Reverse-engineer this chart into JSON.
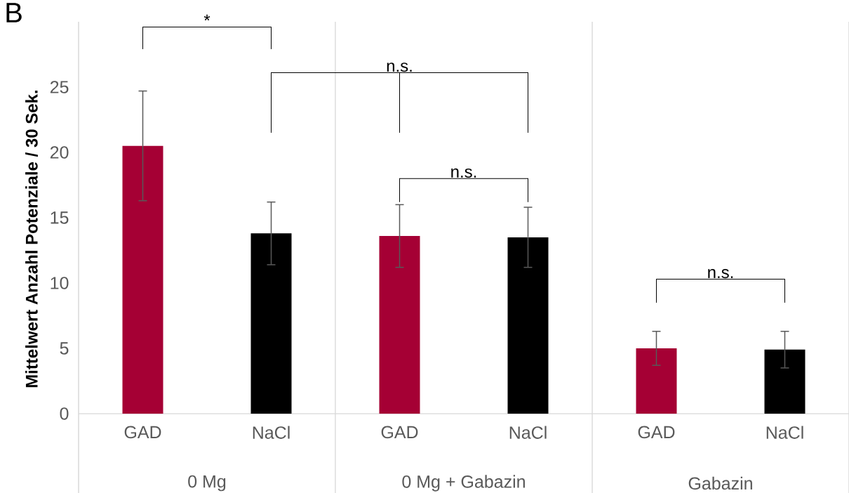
{
  "chart_data": {
    "type": "bar",
    "title": "B",
    "ylabel": "Mittelwert Anzahl Potenziale / 30 Sek.",
    "categories": [
      "GAD",
      "NaCl",
      "GAD",
      "NaCl",
      "GAD",
      "NaCl"
    ],
    "values": [
      20.5,
      13.8,
      13.6,
      13.5,
      5.0,
      4.9
    ],
    "errors": [
      4.2,
      2.4,
      2.4,
      2.3,
      1.3,
      1.4
    ],
    "colors": [
      "#a50034",
      "#000000",
      "#a50034",
      "#000000",
      "#a50034",
      "#000000"
    ],
    "ylim": [
      0,
      30
    ],
    "yticks": [
      0,
      5,
      10,
      15,
      20,
      25
    ],
    "annotations": [
      "*",
      "n.s.",
      "n.s.",
      "n.s.",
      "0 Mg",
      "0 Mg + Gabazin",
      "Gabazin"
    ]
  }
}
